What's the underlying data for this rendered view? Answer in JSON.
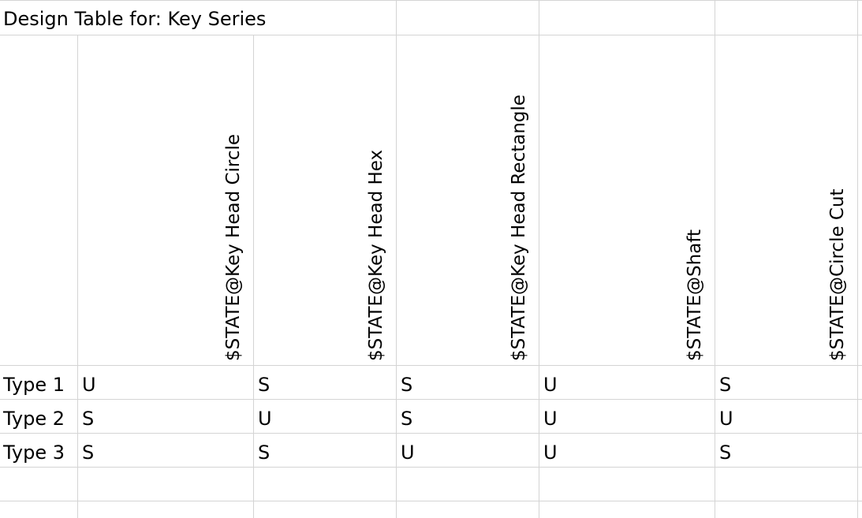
{
  "title": "Design Table for: Key Series",
  "headers": [
    "$STATE@Key Head Circle",
    "$STATE@Key Head Hex",
    "$STATE@Key Head Rectangle",
    "$STATE@Shaft",
    "$STATE@Circle Cut"
  ],
  "rows": [
    {
      "label": "Type 1",
      "values": [
        "U",
        "S",
        "S",
        "U",
        "S"
      ]
    },
    {
      "label": "Type 2",
      "values": [
        "S",
        "U",
        "S",
        "U",
        "U"
      ]
    },
    {
      "label": "Type 3",
      "values": [
        "S",
        "S",
        "U",
        "U",
        "S"
      ]
    }
  ]
}
